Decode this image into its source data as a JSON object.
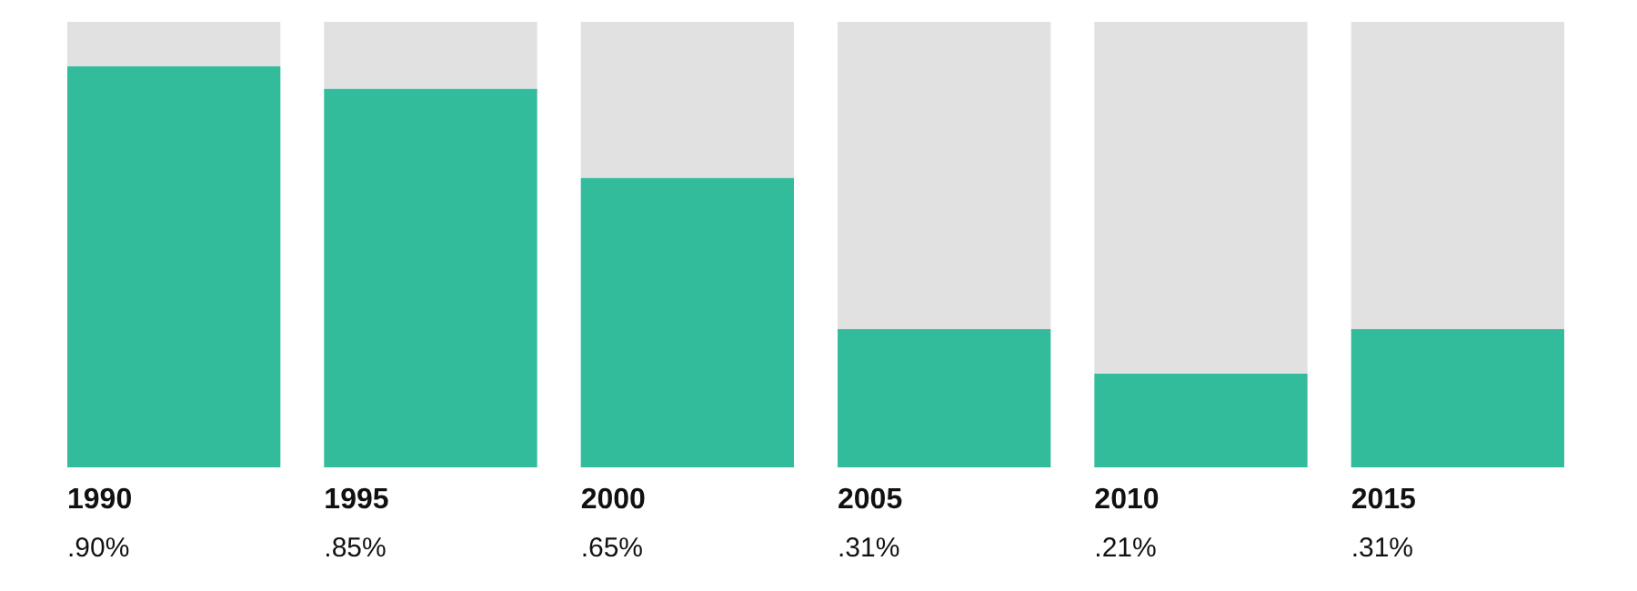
{
  "chart_data": {
    "type": "bar",
    "stacked": true,
    "categories": [
      "1990",
      "1995",
      "2000",
      "2005",
      "2010",
      "2015"
    ],
    "series": [
      {
        "color": "#33bc9c",
        "values": [
          0.9,
          0.85,
          0.65,
          0.31,
          0.21,
          0.31
        ],
        "value_labels": [
          ".90%",
          ".85%",
          ".65%",
          ".31%",
          ".21%",
          ".31%"
        ]
      },
      {
        "color": "#e2e1e2",
        "values": [
          0.1,
          0.15,
          0.35,
          0.69,
          0.79,
          0.69
        ]
      }
    ],
    "ylim": [
      0,
      1
    ],
    "tick_labels": "x"
  }
}
